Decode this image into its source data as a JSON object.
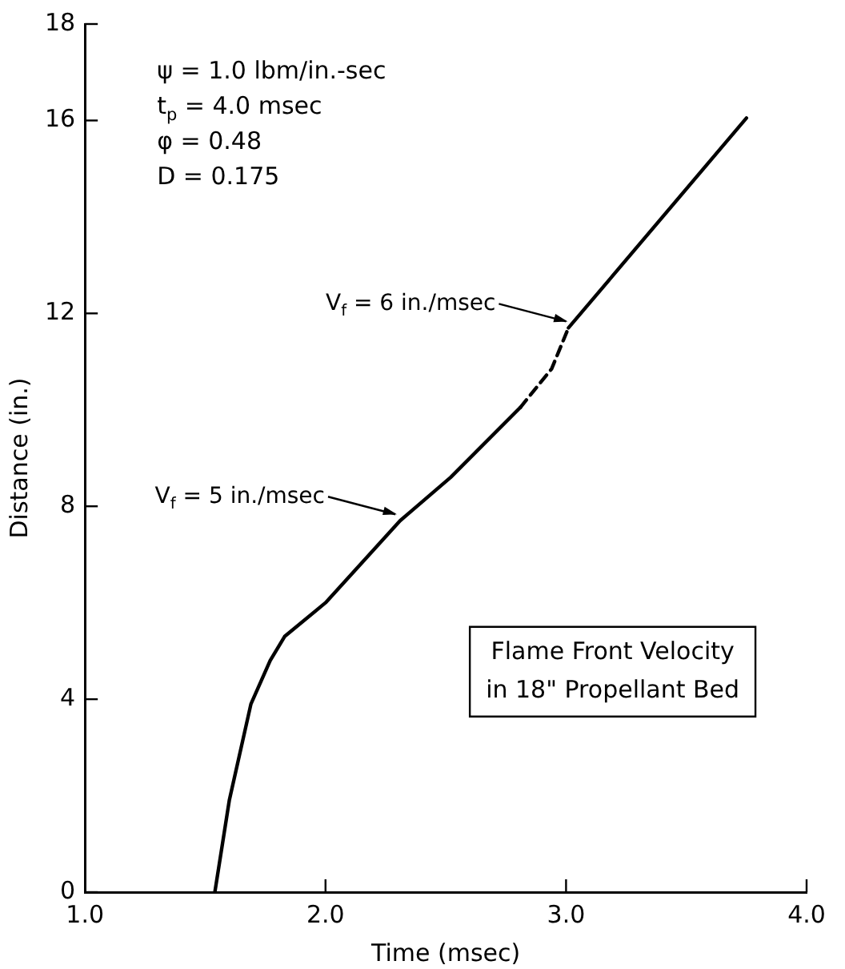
{
  "chart_data": {
    "type": "line",
    "xlabel": "Time (msec)",
    "ylabel": "Distance (in.)",
    "xlim": [
      1.0,
      4.0
    ],
    "xticks": [
      {
        "value": 1,
        "label": "1.0"
      },
      {
        "value": 2,
        "label": "2.0"
      },
      {
        "value": 3,
        "label": "3.0"
      },
      {
        "value": 4,
        "label": "4.0"
      }
    ],
    "ylim": [
      0,
      18
    ],
    "yticks": [
      0,
      4,
      8,
      12,
      16,
      18
    ],
    "grid": false,
    "legend": false,
    "marker": "none",
    "series": [
      {
        "color": "#000000",
        "line_style": "solid",
        "x": [
          1.54,
          1.6,
          1.69,
          1.77,
          1.83,
          2.0,
          2.31,
          2.52,
          2.81
        ],
        "values": [
          0,
          1.9,
          3.9,
          4.8,
          5.3,
          6.0,
          7.7,
          8.6,
          10.05
        ]
      },
      {
        "color": "#000000",
        "line_style": "dashed",
        "x": [
          2.81,
          2.94,
          3.01
        ],
        "values": [
          10.05,
          10.85,
          11.7
        ]
      },
      {
        "color": "#000000",
        "line_style": "solid",
        "x": [
          3.01,
          3.75
        ],
        "values": [
          11.7,
          16.05
        ]
      }
    ],
    "annotations": [
      "ψ = 1.0 lbm/in.-sec",
      "t$_{p}$ = 4.0 msec",
      "φ = 0.48",
      "D = 0.175",
      {
        "text": "V$_{f}$ = 5 in./msec",
        "x": 2.31,
        "y": 7.8
      },
      {
        "text": "V$_{f}$ = 6 in./msec",
        "x": 3.02,
        "y": 11.8
      },
      "Flame Front Velocity\nin 18\" Propellant Bed"
    ]
  }
}
